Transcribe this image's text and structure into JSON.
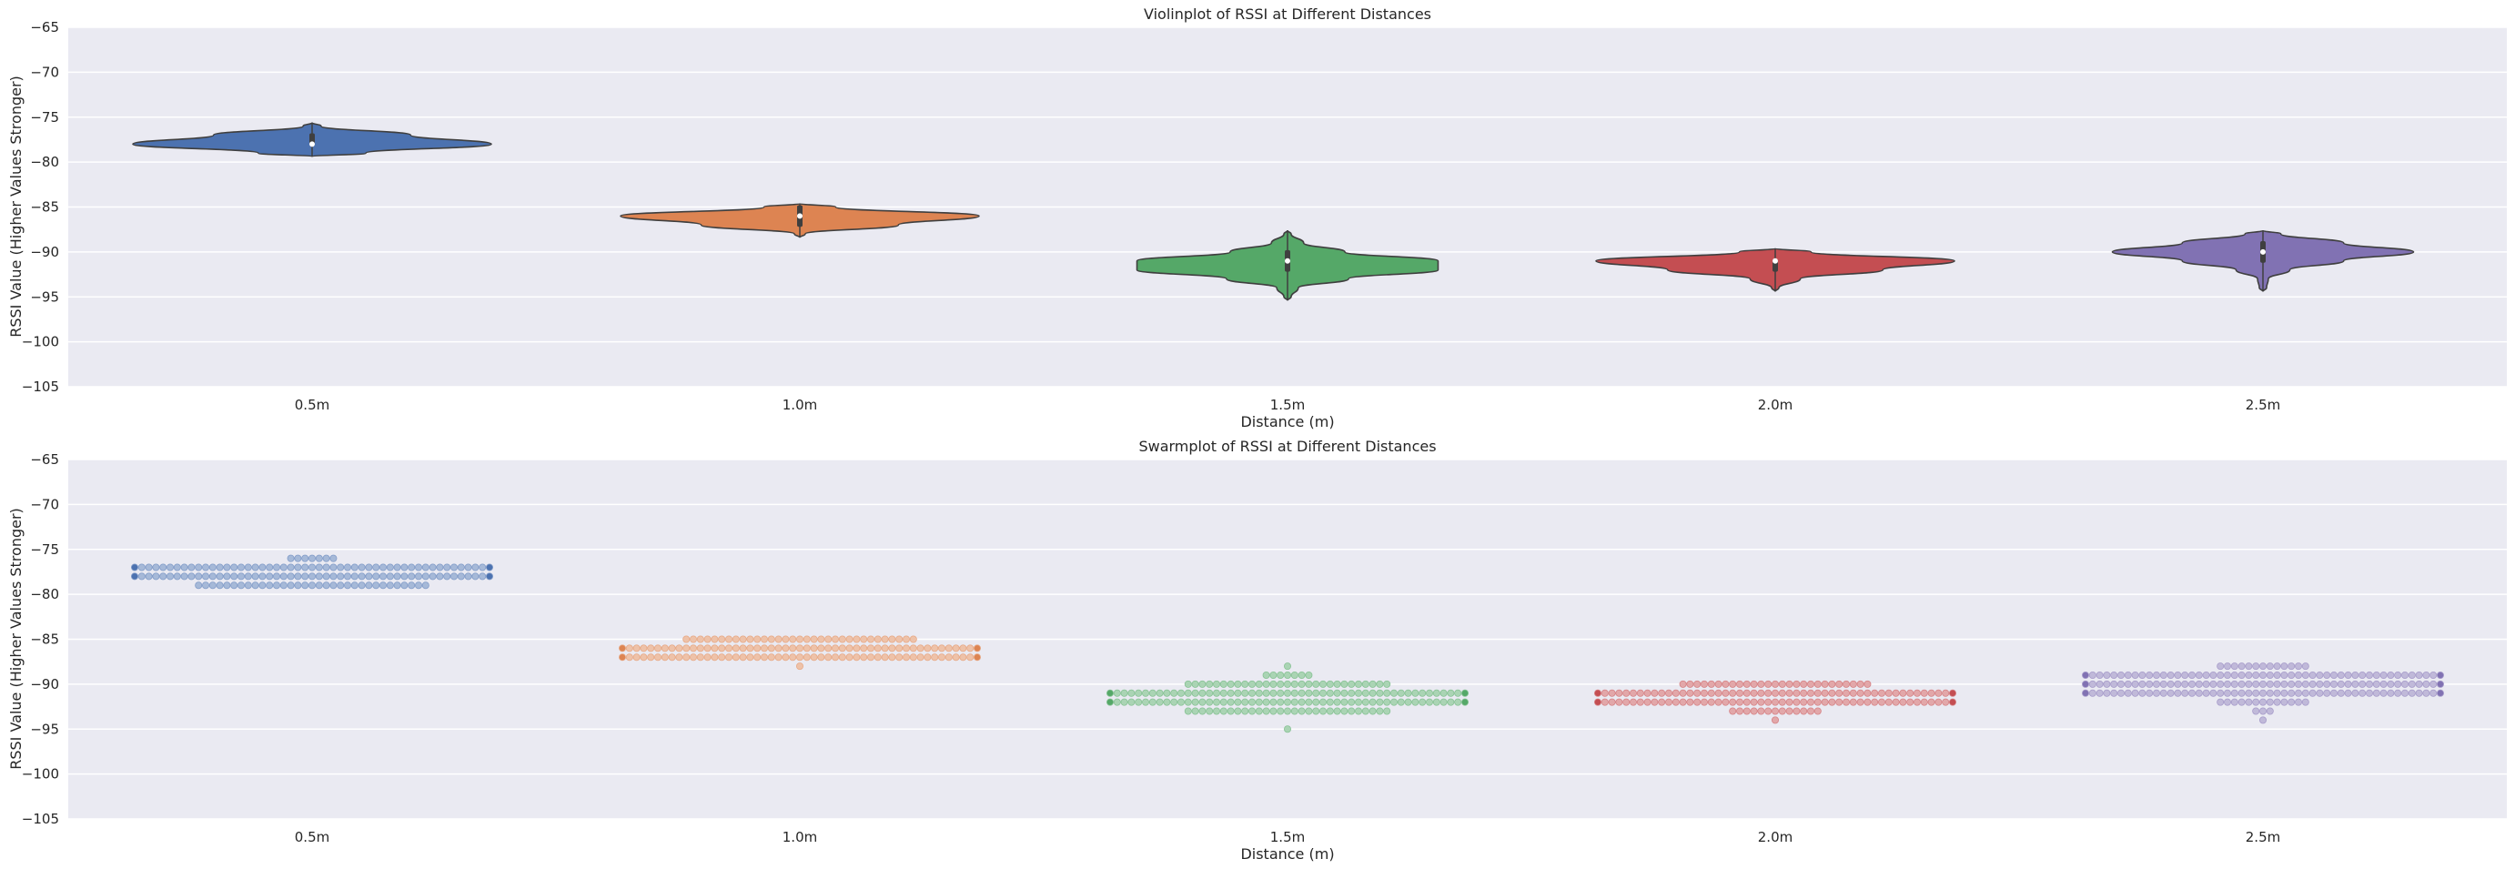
{
  "chart_data": [
    {
      "type": "violin",
      "title": "Violinplot of RSSI at Different Distances",
      "xlabel": "Distance (m)",
      "ylabel": "RSSI Value (Higher Values Stronger)",
      "ylim": [
        -105,
        -65
      ],
      "yticks": [
        -65,
        -70,
        -75,
        -80,
        -85,
        -90,
        -95,
        -100,
        -105
      ],
      "ytick_labels": [
        "−65",
        "−70",
        "−75",
        "−80",
        "−85",
        "−90",
        "−95",
        "−100",
        "−105"
      ],
      "grid": true,
      "categories": [
        "0.5m",
        "1.0m",
        "1.5m",
        "2.0m",
        "2.5m"
      ],
      "series": [
        {
          "category": "0.5m",
          "color": "#4c72b0",
          "median": -78,
          "q1": -78,
          "q3": -77,
          "density": [
            [
              -76,
              0.05
            ],
            [
              -77,
              0.55
            ],
            [
              -78,
              1.0
            ],
            [
              -79,
              0.3
            ]
          ]
        },
        {
          "category": "1.0m",
          "color": "#dd8452",
          "median": -86,
          "q1": -87,
          "q3": -85,
          "density": [
            [
              -85,
              0.2
            ],
            [
              -86,
              1.0
            ],
            [
              -87,
              0.55
            ],
            [
              -88,
              0.03
            ]
          ]
        },
        {
          "category": "1.5m",
          "color": "#55a868",
          "median": -91,
          "q1": -92,
          "q3": -90,
          "density": [
            [
              -88,
              0.02
            ],
            [
              -89,
              0.09
            ],
            [
              -90,
              0.32
            ],
            [
              -91,
              0.84
            ],
            [
              -92,
              0.84
            ],
            [
              -93,
              0.34
            ],
            [
              -94,
              0.06
            ],
            [
              -95,
              0.02
            ]
          ]
        },
        {
          "category": "2.0m",
          "color": "#c44e52",
          "median": -91,
          "q1": -92,
          "q3": -91,
          "density": [
            [
              -90,
              0.2
            ],
            [
              -91,
              1.0
            ],
            [
              -92,
              0.6
            ],
            [
              -93,
              0.14
            ],
            [
              -94,
              0.02
            ]
          ]
        },
        {
          "category": "2.5m",
          "color": "#8172b3",
          "median": -90,
          "q1": -91,
          "q3": -89,
          "density": [
            [
              -88,
              0.1
            ],
            [
              -89,
              0.45
            ],
            [
              -90,
              0.84
            ],
            [
              -91,
              0.45
            ],
            [
              -92,
              0.15
            ],
            [
              -93,
              0.03
            ],
            [
              -94,
              0.02
            ]
          ]
        }
      ]
    },
    {
      "type": "scatter",
      "subtype": "swarm",
      "title": "Swarmplot of RSSI at Different Distances",
      "xlabel": "Distance (m)",
      "ylabel": "RSSI Value (Higher Values Stronger)",
      "ylim": [
        -105,
        -65
      ],
      "yticks": [
        -65,
        -70,
        -75,
        -80,
        -85,
        -90,
        -95,
        -100,
        -105
      ],
      "ytick_labels": [
        "−65",
        "−70",
        "−75",
        "−80",
        "−85",
        "−90",
        "−95",
        "−100",
        "−105"
      ],
      "grid": true,
      "categories": [
        "0.5m",
        "1.0m",
        "1.5m",
        "2.0m",
        "2.5m"
      ],
      "series": [
        {
          "category": "0.5m",
          "color": "#4c72b0",
          "points": [
            {
              "y": -76,
              "count": 7
            },
            {
              "y": -77,
              "count": 51
            },
            {
              "y": -78,
              "count": 51
            },
            {
              "y": -79,
              "count": 33
            }
          ]
        },
        {
          "category": "1.0m",
          "color": "#dd8452",
          "points": [
            {
              "y": -85,
              "count": 33
            },
            {
              "y": -86,
              "count": 51
            },
            {
              "y": -87,
              "count": 51
            },
            {
              "y": -88,
              "count": 1
            }
          ]
        },
        {
          "category": "1.5m",
          "color": "#55a868",
          "points": [
            {
              "y": -88,
              "count": 1
            },
            {
              "y": -89,
              "count": 7
            },
            {
              "y": -90,
              "count": 29
            },
            {
              "y": -91,
              "count": 51
            },
            {
              "y": -92,
              "count": 51
            },
            {
              "y": -93,
              "count": 29
            },
            {
              "y": -95,
              "count": 1
            }
          ]
        },
        {
          "category": "2.0m",
          "color": "#c44e52",
          "points": [
            {
              "y": -90,
              "count": 27
            },
            {
              "y": -91,
              "count": 51
            },
            {
              "y": -92,
              "count": 51
            },
            {
              "y": -93,
              "count": 13
            },
            {
              "y": -94,
              "count": 1
            }
          ]
        },
        {
          "category": "2.5m",
          "color": "#8172b3",
          "points": [
            {
              "y": -88,
              "count": 13
            },
            {
              "y": -89,
              "count": 51
            },
            {
              "y": -90,
              "count": 51
            },
            {
              "y": -91,
              "count": 51
            },
            {
              "y": -92,
              "count": 13
            },
            {
              "y": -93,
              "count": 3
            },
            {
              "y": -94,
              "count": 1
            }
          ]
        }
      ]
    }
  ],
  "colors": {
    "axes_background": "#eaeaf2",
    "grid": "#ffffff",
    "text": "#262626",
    "outline": "#3f3f3f"
  }
}
